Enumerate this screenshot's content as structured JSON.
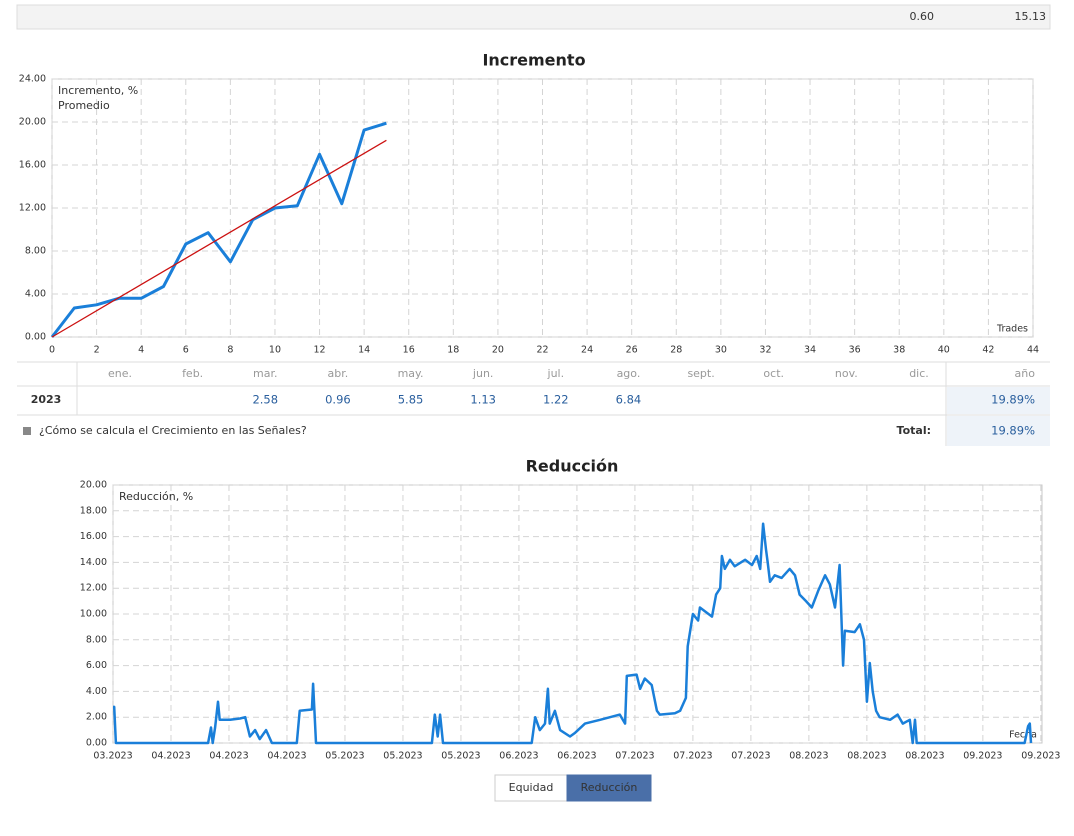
{
  "top_row": [
    "0.60",
    "15.13"
  ],
  "chart_data": [
    {
      "type": "line",
      "title": "Incremento",
      "x_label": "Trades",
      "xlim": [
        0,
        44
      ],
      "xticks": [
        0,
        2,
        4,
        6,
        8,
        10,
        12,
        14,
        16,
        18,
        20,
        22,
        24,
        26,
        28,
        30,
        32,
        34,
        36,
        38,
        40,
        42,
        44
      ],
      "ylim": [
        0,
        24
      ],
      "yticks": [
        {
          "value": 0,
          "label": "0.00"
        },
        {
          "value": 4,
          "label": "4.00"
        },
        {
          "value": 8,
          "label": "8.00"
        },
        {
          "value": 12,
          "label": "12.00"
        },
        {
          "value": 16,
          "label": "16.00"
        },
        {
          "value": 20,
          "label": "20.00"
        },
        {
          "value": 24,
          "label": "24.00"
        }
      ],
      "grid": true,
      "series": [
        {
          "name": "Incremento, %",
          "color": "#1a7fd9",
          "width": 3,
          "x": [
            0,
            1,
            2,
            3,
            4,
            5,
            6,
            7,
            8,
            9,
            10,
            11,
            12,
            13,
            14,
            15
          ],
          "values": [
            0,
            2.7,
            3.0,
            3.6,
            3.6,
            4.7,
            8.65,
            9.7,
            7.0,
            10.9,
            12.0,
            12.2,
            17.0,
            12.4,
            19.25,
            19.89
          ]
        },
        {
          "name": "Promedio",
          "color": "#cc1111",
          "width": 1.3,
          "x": [
            0,
            15
          ],
          "values": [
            0,
            18.3
          ]
        }
      ]
    },
    {
      "type": "line",
      "title": "Reducción",
      "x_label": "Fecha",
      "xlim": [
        0,
        16.02
      ],
      "xticks": [
        {
          "value": 0,
          "label": "03.2023"
        },
        {
          "value": 1,
          "label": "04.2023"
        },
        {
          "value": 2,
          "label": "04.2023"
        },
        {
          "value": 3,
          "label": "04.2023"
        },
        {
          "value": 4,
          "label": "05.2023"
        },
        {
          "value": 5,
          "label": "05.2023"
        },
        {
          "value": 6,
          "label": "05.2023"
        },
        {
          "value": 7,
          "label": "06.2023"
        },
        {
          "value": 8,
          "label": "06.2023"
        },
        {
          "value": 9,
          "label": "07.2023"
        },
        {
          "value": 10,
          "label": "07.2023"
        },
        {
          "value": 11,
          "label": "07.2023"
        },
        {
          "value": 12,
          "label": "08.2023"
        },
        {
          "value": 13,
          "label": "08.2023"
        },
        {
          "value": 14,
          "label": "08.2023"
        },
        {
          "value": 15,
          "label": "09.2023"
        },
        {
          "value": 16,
          "label": "09.2023"
        }
      ],
      "ylim": [
        0,
        20
      ],
      "yticks": [
        {
          "value": 0,
          "label": "0.00"
        },
        {
          "value": 2,
          "label": "2.00"
        },
        {
          "value": 4,
          "label": "4.00"
        },
        {
          "value": 6,
          "label": "6.00"
        },
        {
          "value": 8,
          "label": "8.00"
        },
        {
          "value": 10,
          "label": "10.00"
        },
        {
          "value": 12,
          "label": "12.00"
        },
        {
          "value": 14,
          "label": "14.00"
        },
        {
          "value": 16,
          "label": "16.00"
        },
        {
          "value": 18,
          "label": "18.00"
        },
        {
          "value": 20,
          "label": "20.00"
        }
      ],
      "grid": true,
      "series": [
        {
          "name": "Reducción, %",
          "color": "#1a7fd9",
          "width": 2.5,
          "x": [
            0,
            0.02,
            0.05,
            1.64,
            1.69,
            1.72,
            1.76,
            1.81,
            1.84,
            2.02,
            2.19,
            2.28,
            2.36,
            2.45,
            2.53,
            2.64,
            2.74,
            3.17,
            3.22,
            3.43,
            3.45,
            3.5,
            5.5,
            5.55,
            5.6,
            5.64,
            5.69,
            7.22,
            7.28,
            7.36,
            7.45,
            7.5,
            7.53,
            7.62,
            7.71,
            7.88,
            7.97,
            8.14,
            8.4,
            8.57,
            8.74,
            8.83,
            8.86,
            9.03,
            9.09,
            9.17,
            9.29,
            9.38,
            9.43,
            9.69,
            9.78,
            9.88,
            9.91,
            10.0,
            10.09,
            10.12,
            10.33,
            10.4,
            10.47,
            10.5,
            10.55,
            10.64,
            10.72,
            10.9,
            11.02,
            11.1,
            11.16,
            11.21,
            11.26,
            11.29,
            11.33,
            11.41,
            11.53,
            11.67,
            11.76,
            11.84,
            11.95,
            12.05,
            12.16,
            12.28,
            12.36,
            12.45,
            12.53,
            12.59,
            12.62,
            12.79,
            12.88,
            12.95,
            13.0,
            13.05,
            13.1,
            13.16,
            13.22,
            13.4,
            13.53,
            13.62,
            13.74,
            13.79,
            13.83,
            13.86,
            15.72,
            15.78,
            15.81,
            15.83
          ],
          "values": [
            2.8,
            2.8,
            0,
            0,
            1.2,
            0,
            1.2,
            3.2,
            1.8,
            1.8,
            1.9,
            2.0,
            0.5,
            1.0,
            0.3,
            1.0,
            0,
            0,
            2.5,
            2.6,
            4.6,
            0,
            0,
            2.2,
            0.5,
            2.2,
            0,
            0,
            2.0,
            1.0,
            1.5,
            4.2,
            1.5,
            2.5,
            1.0,
            0.5,
            0.8,
            1.5,
            1.8,
            2.0,
            2.2,
            1.5,
            5.2,
            5.3,
            4.2,
            5.0,
            4.5,
            2.5,
            2.2,
            2.3,
            2.5,
            3.5,
            7.5,
            10.0,
            9.5,
            10.5,
            9.8,
            11.5,
            12.0,
            14.5,
            13.5,
            14.2,
            13.7,
            14.2,
            13.8,
            14.5,
            13.5,
            17.0,
            15.0,
            14.0,
            12.5,
            13.0,
            12.8,
            13.5,
            13.0,
            11.5,
            11.0,
            10.5,
            11.8,
            13.0,
            12.3,
            10.5,
            13.8,
            6.0,
            8.7,
            8.6,
            9.2,
            8.0,
            3.2,
            6.2,
            4.0,
            2.5,
            2.0,
            1.8,
            2.2,
            1.5,
            1.8,
            0,
            1.8,
            0,
            0,
            1.3,
            1.5,
            0
          ]
        }
      ]
    }
  ],
  "table": {
    "months": [
      "ene.",
      "feb.",
      "mar.",
      "abr.",
      "may.",
      "jun.",
      "jul.",
      "ago.",
      "sept.",
      "oct.",
      "nov.",
      "dic."
    ],
    "total_header": "año",
    "rows": [
      {
        "year": "2023",
        "months": [
          null,
          null,
          "2.58",
          "0.96",
          "5.85",
          "1.13",
          "1.22",
          "6.84",
          null,
          null,
          null,
          null
        ],
        "total": "19.89%"
      }
    ],
    "footer": {
      "link": "¿Cómo se calcula el Crecimiento en las Señales?",
      "total_label": "Total:",
      "total": "19.89%"
    }
  },
  "tabs": [
    "Equidad",
    "Reducción"
  ]
}
